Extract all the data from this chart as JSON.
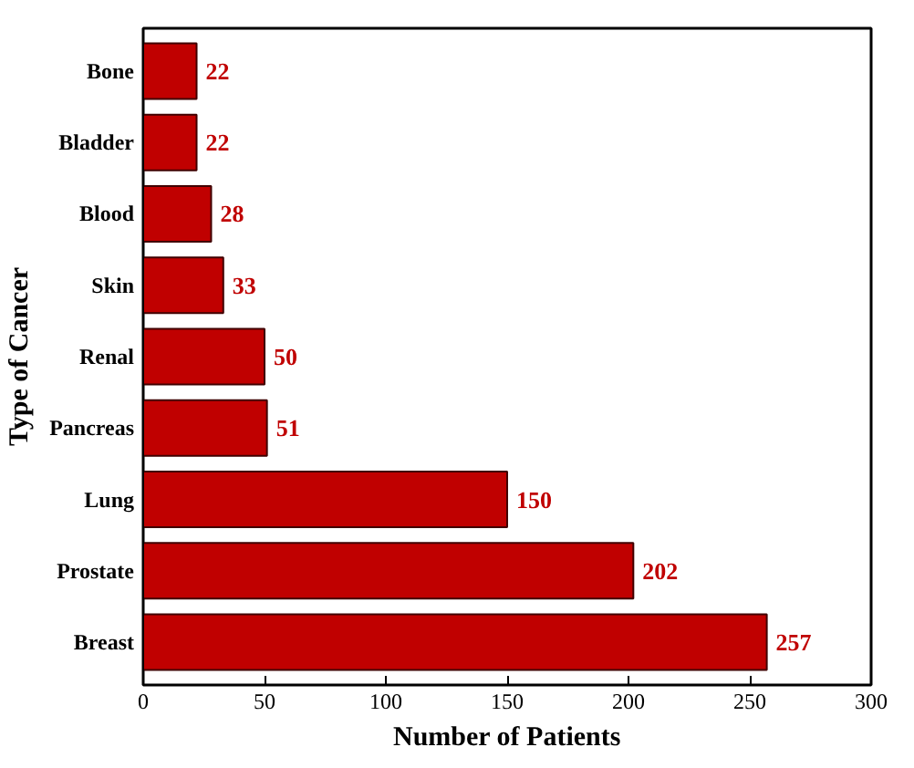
{
  "chart_data": {
    "type": "bar",
    "orientation": "horizontal",
    "xlabel": "Number of Patients",
    "ylabel": "Type of Cancer",
    "categories": [
      "Bone",
      "Bladder",
      "Blood",
      "Skin",
      "Renal",
      "Pancreas",
      "Lung",
      "Prostate",
      "Breast"
    ],
    "values": [
      22,
      22,
      28,
      33,
      50,
      51,
      150,
      202,
      257
    ],
    "color": "#c00000",
    "data_labels": true,
    "xlim": [
      0,
      300
    ],
    "xticks": [
      0,
      50,
      100,
      150,
      200,
      250,
      300
    ],
    "grid": false
  }
}
